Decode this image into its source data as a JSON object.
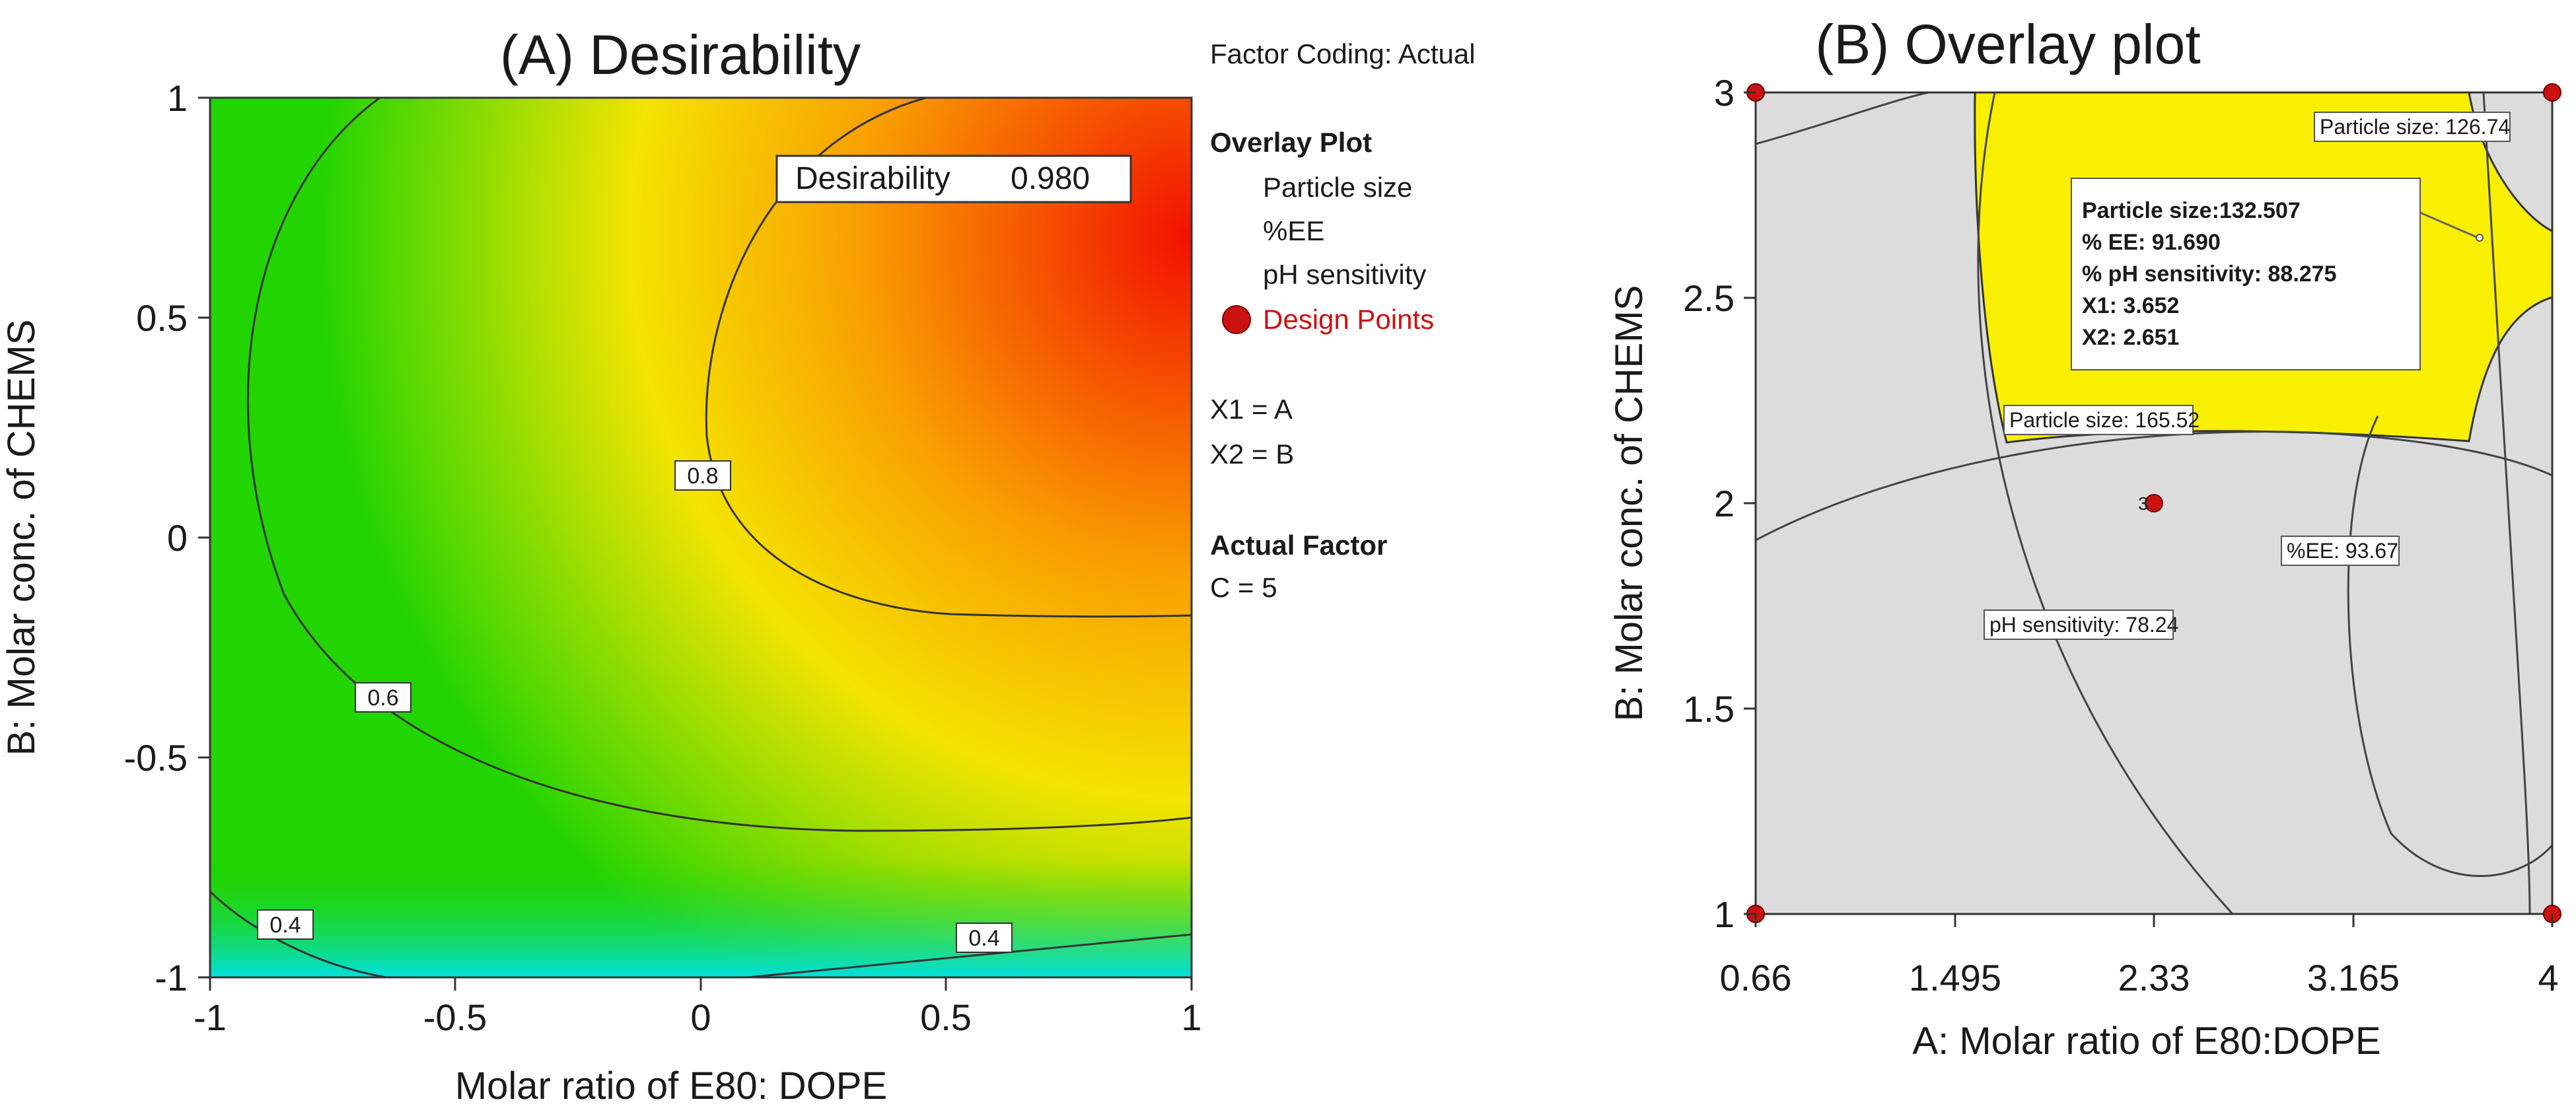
{
  "chart_data": [
    {
      "panel": "A",
      "type": "contour",
      "title": "(A)  Desirability",
      "xlabel": "Molar ratio of E80: DOPE",
      "ylabel": "B: Molar conc. of CHEMS",
      "xlim": [
        -1,
        1
      ],
      "ylim": [
        -1,
        1
      ],
      "x_ticks": [
        "-1",
        "-0.5",
        "0",
        "0.5",
        "1"
      ],
      "y_ticks": [
        "-1",
        "-0.5",
        "0",
        "0.5",
        "1"
      ],
      "colormap": {
        "low": "#00e0e0",
        "mid_low": "#22d400",
        "mid": "#f4e400",
        "mid_high": "#f9a000",
        "high": "#f31000"
      },
      "contours": [
        {
          "label": "0.8",
          "level": 0.8
        },
        {
          "label": "0.6",
          "level": 0.6
        },
        {
          "label": "0.4",
          "level": 0.4
        },
        {
          "label": "0.4",
          "level": 0.4
        }
      ],
      "optimum": {
        "label": "Desirability",
        "value": "0.980",
        "x": 0.85,
        "y": 0.6
      },
      "legend": {
        "factor_coding": "Factor Coding: Actual",
        "overlay_header": "Overlay Plot",
        "items": [
          "Particle size",
          "%EE",
          "pH sensitivity"
        ],
        "design_points": "Design Points",
        "design_points_color": "#cc1111",
        "x1": "X1 = A",
        "x2": "X2 = B",
        "actual_factor_header": "Actual Factor",
        "actual_factor_value": "C = 5"
      }
    },
    {
      "panel": "B",
      "type": "overlay",
      "title": "(B)  Overlay plot",
      "xlabel": "A: Molar ratio of E80:DOPE",
      "ylabel": "B: Molar conc. of CHEMS",
      "xlim": [
        0.66,
        4
      ],
      "ylim": [
        1,
        3
      ],
      "x_ticks": [
        "0.66",
        "1.495",
        "2.33",
        "3.165",
        "4"
      ],
      "y_ticks": [
        "1",
        "1.5",
        "2",
        "2.5",
        "3"
      ],
      "region_color": "#f8f000",
      "background_color": "#dcdcdc",
      "contour_labels": [
        {
          "text": "Particle size: 126.74"
        },
        {
          "text": "Particle size: 165.52"
        },
        {
          "text": "%EE: 93.67"
        },
        {
          "text": "pH sensitivity: 78.24"
        }
      ],
      "design_points": [
        {
          "x": 0.66,
          "y": 3
        },
        {
          "x": 4,
          "y": 3
        },
        {
          "x": 0.66,
          "y": 1
        },
        {
          "x": 4,
          "y": 1
        },
        {
          "x": 2.33,
          "y": 2,
          "label": "3"
        }
      ],
      "optimum_point": {
        "x": 3.652,
        "y": 2.651
      },
      "tooltip": {
        "particle_size": "Particle size:132.507",
        "ee": "% EE: 91.690",
        "ph": "% pH sensitivity: 88.275",
        "x1": "X1: 3.652",
        "x2": "X2: 2.651"
      }
    }
  ]
}
